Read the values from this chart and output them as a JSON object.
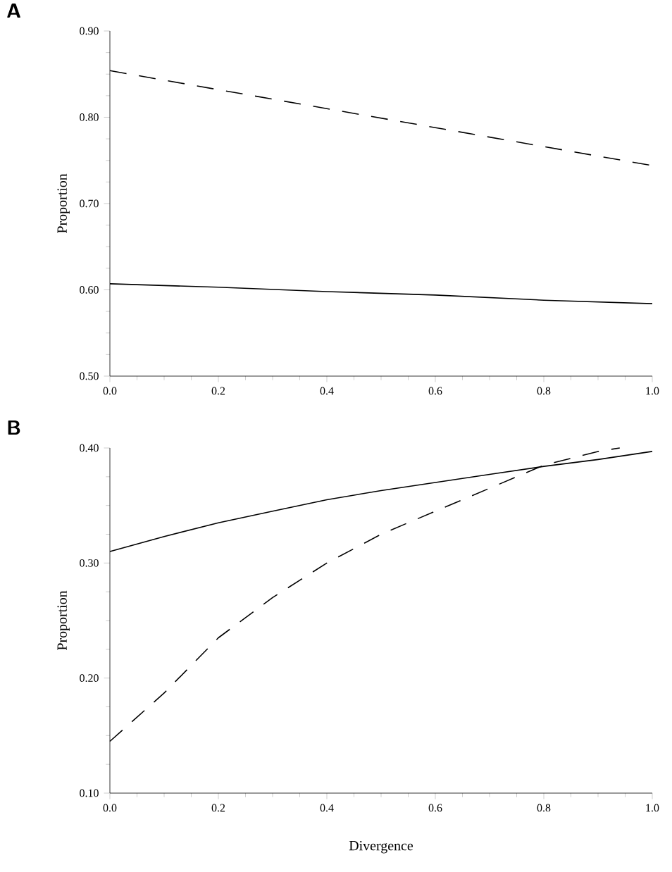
{
  "chart_data": [
    {
      "type": "line",
      "title": "A",
      "ylabel": "Proportion",
      "xlim": [
        0,
        1
      ],
      "ylim": [
        0.5,
        0.9
      ],
      "xticks": [
        {
          "value": 0,
          "label": "0.0"
        },
        {
          "value": 0.2,
          "label": "0.2"
        },
        {
          "value": 0.4,
          "label": "0.4"
        },
        {
          "value": 0.6,
          "label": "0.6"
        },
        {
          "value": 0.8,
          "label": "0.8"
        },
        {
          "value": 1,
          "label": "1.0"
        }
      ],
      "yticks": [
        {
          "value": 0.5,
          "label": "0.50"
        },
        {
          "value": 0.6,
          "label": "0.60"
        },
        {
          "value": 0.7,
          "label": "0.70"
        },
        {
          "value": 0.8,
          "label": "0.80"
        },
        {
          "value": 0.9,
          "label": "0.90"
        }
      ],
      "x": [
        0,
        0.2,
        0.4,
        0.6,
        0.8,
        1.0
      ],
      "series": [
        {
          "color": "#000000",
          "line_style": "dashed",
          "values": [
            0.854,
            0.832,
            0.81,
            0.788,
            0.766,
            0.744
          ]
        },
        {
          "color": "#000000",
          "line_style": "solid",
          "values": [
            0.607,
            0.603,
            0.598,
            0.594,
            0.588,
            0.584
          ]
        }
      ],
      "grid": false,
      "marker": "none"
    },
    {
      "type": "line",
      "title": "B",
      "xlabel": "Divergence",
      "ylabel": "Proportion",
      "xlim": [
        0,
        1
      ],
      "ylim": [
        0.1,
        0.4
      ],
      "xticks": [
        {
          "value": 0,
          "label": "0.0"
        },
        {
          "value": 0.2,
          "label": "0.2"
        },
        {
          "value": 0.4,
          "label": "0.4"
        },
        {
          "value": 0.6,
          "label": "0.6"
        },
        {
          "value": 0.8,
          "label": "0.8"
        },
        {
          "value": 1,
          "label": "1.0"
        }
      ],
      "yticks": [
        {
          "value": 0.1,
          "label": "0.10"
        },
        {
          "value": 0.2,
          "label": "0.20"
        },
        {
          "value": 0.3,
          "label": "0.30"
        },
        {
          "value": 0.4,
          "label": "0.40"
        }
      ],
      "series": [
        {
          "color": "#000000",
          "line_style": "solid",
          "x": [
            0,
            0.1,
            0.2,
            0.3,
            0.4,
            0.5,
            0.6,
            0.7,
            0.8,
            0.9,
            1.0
          ],
          "values": [
            0.31,
            0.323,
            0.335,
            0.345,
            0.355,
            0.363,
            0.37,
            0.377,
            0.384,
            0.39,
            0.397
          ]
        },
        {
          "color": "#000000",
          "line_style": "dashed",
          "x": [
            0,
            0.1,
            0.2,
            0.3,
            0.4,
            0.5,
            0.6,
            0.7,
            0.8,
            0.9,
            0.94
          ],
          "values": [
            0.145,
            0.187,
            0.235,
            0.27,
            0.3,
            0.325,
            0.345,
            0.365,
            0.385,
            0.397,
            0.4
          ]
        }
      ],
      "grid": false,
      "marker": "none"
    }
  ]
}
